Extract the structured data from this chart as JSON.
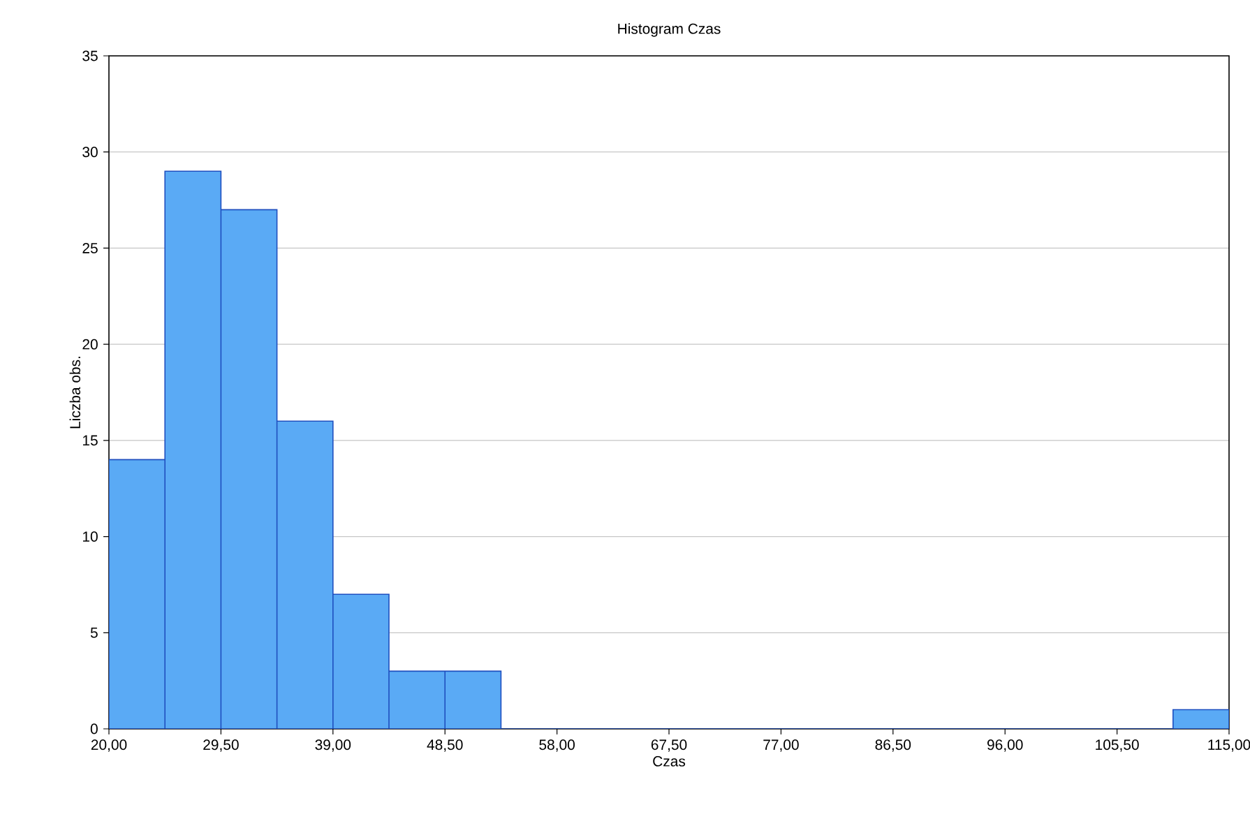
{
  "chart_data": {
    "type": "histogram",
    "title": "Histogram   Czas",
    "xlabel": "Czas",
    "ylabel": "Liczba obs.",
    "bins": [
      20,
      24.75,
      29.5,
      34.25,
      39,
      43.75,
      48.5,
      53.25,
      58,
      62.75,
      67.5,
      72.25,
      77,
      81.75,
      86.5,
      91.25,
      96,
      100.75,
      105.5,
      110.25,
      115
    ],
    "values": [
      14,
      29,
      27,
      16,
      7,
      3,
      3,
      0,
      0,
      0,
      0,
      0,
      0,
      0,
      0,
      0,
      0,
      0,
      0,
      1
    ],
    "color": "#5aaaf5",
    "xlim": [
      20,
      115
    ],
    "xticks": [
      {
        "value": 20,
        "label": "20,00"
      },
      {
        "value": 29.5,
        "label": "29,50"
      },
      {
        "value": 39,
        "label": "39,00"
      },
      {
        "value": 48.5,
        "label": "48,50"
      },
      {
        "value": 58,
        "label": "58,00"
      },
      {
        "value": 67.5,
        "label": "67,50"
      },
      {
        "value": 77,
        "label": "77,00"
      },
      {
        "value": 86.5,
        "label": "86,50"
      },
      {
        "value": 96,
        "label": "96,00"
      },
      {
        "value": 105.5,
        "label": "105,50"
      },
      {
        "value": 115,
        "label": "115,00"
      }
    ],
    "ylim": [
      0,
      35
    ],
    "yticks": [
      0,
      5,
      10,
      15,
      20,
      25,
      30,
      35
    ],
    "grid": "y"
  }
}
